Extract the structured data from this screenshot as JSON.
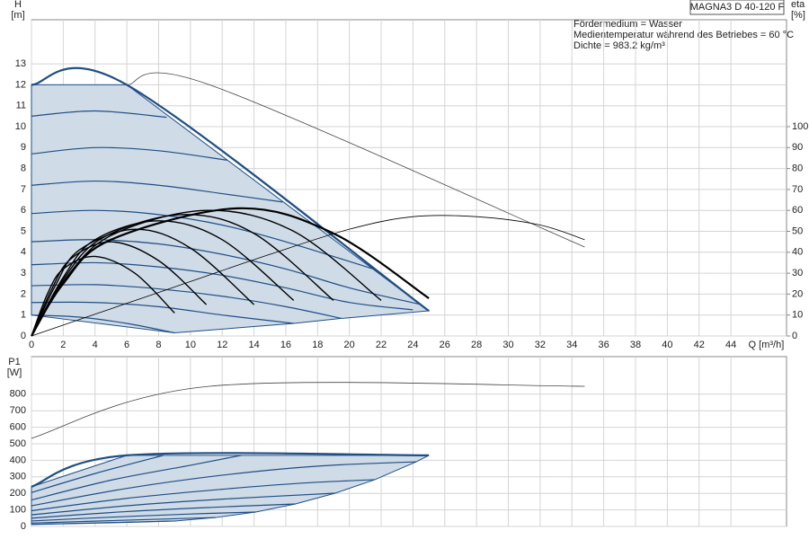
{
  "chart_data": [
    {
      "type": "line",
      "model": "MAGNA3 D 40-120 F",
      "notes": [
        "Fördermedium = Wasser",
        "Medientemperatur während des Betriebes = 60 °C",
        "Dichte = 983.2 kg/m³"
      ],
      "ylabel": [
        "H",
        "[m]"
      ],
      "y2label": [
        "eta",
        "[%]"
      ],
      "xlabel": "Q [m³/h]",
      "xlim": [
        0,
        47.5
      ],
      "xticks": [
        0,
        2,
        4,
        6,
        8,
        10,
        12,
        14,
        16,
        18,
        20,
        22,
        24,
        26,
        28,
        30,
        32,
        34,
        36,
        38,
        40,
        42,
        44
      ],
      "ylim": [
        0,
        15
      ],
      "yticks": [
        0,
        1,
        2,
        3,
        4,
        5,
        6,
        7,
        8,
        9,
        10,
        11,
        12,
        13
      ],
      "y2lim": [
        0,
        150
      ],
      "y2ticks": [
        0,
        10,
        20,
        30,
        40,
        50,
        60,
        70,
        80,
        90,
        100
      ],
      "grid": true,
      "region_color": "#cfdce8",
      "series": [
        {
          "color": "#1f4e85",
          "linewidth": 2.2,
          "x": [
            0,
            6,
            25
          ],
          "values": [
            12,
            12,
            1.2
          ]
        },
        {
          "color": "#1f4e85",
          "linewidth": 1.2,
          "x": [
            0,
            4,
            8.5
          ],
          "values": [
            10.5,
            10.75,
            10.45
          ]
        },
        {
          "color": "#1f4e85",
          "linewidth": 1.2,
          "x": [
            0,
            4,
            8,
            12.3
          ],
          "values": [
            8.7,
            9.0,
            8.85,
            8.4
          ]
        },
        {
          "color": "#1f4e85",
          "linewidth": 1.2,
          "x": [
            0,
            4,
            8,
            12,
            15.8
          ],
          "values": [
            7.2,
            7.4,
            7.2,
            6.8,
            6.4
          ]
        },
        {
          "color": "#1f4e85",
          "linewidth": 1.2,
          "x": [
            0,
            4,
            8,
            12,
            16,
            21.5
          ],
          "values": [
            5.85,
            6.0,
            5.8,
            5.3,
            4.5,
            3.2
          ]
        },
        {
          "color": "#1f4e85",
          "linewidth": 1.2,
          "x": [
            0,
            4,
            8,
            12,
            16,
            20,
            24.5
          ],
          "values": [
            4.5,
            4.6,
            4.4,
            3.9,
            3.2,
            2.3,
            1.5
          ]
        },
        {
          "color": "#1f4e85",
          "linewidth": 1.2,
          "x": [
            0,
            4,
            8,
            12,
            16,
            20,
            24
          ],
          "values": [
            3.4,
            3.5,
            3.3,
            2.9,
            2.3,
            1.6,
            1.25
          ]
        },
        {
          "color": "#1f4e85",
          "linewidth": 1.2,
          "x": [
            0,
            4,
            8,
            12,
            16,
            19.5
          ],
          "values": [
            2.4,
            2.45,
            2.25,
            1.9,
            1.4,
            0.84
          ]
        },
        {
          "color": "#1f4e85",
          "linewidth": 1.2,
          "x": [
            0,
            4,
            8,
            12,
            16.5
          ],
          "values": [
            1.6,
            1.6,
            1.4,
            1.0,
            0.6
          ]
        },
        {
          "color": "#1f4e85",
          "linewidth": 1.2,
          "x": [
            0,
            3,
            6,
            9
          ],
          "values": [
            1.0,
            0.9,
            0.6,
            0.15
          ]
        },
        {
          "color": "#444444",
          "linewidth": 0.8,
          "x": [
            6,
            11.2,
            34.8
          ],
          "values": [
            12,
            12,
            4.25
          ]
        },
        {
          "color": "#000000",
          "linewidth": 0.8,
          "axis": "y2",
          "x": [
            0,
            5,
            10,
            15,
            20,
            24,
            28,
            32,
            34.8
          ],
          "values": [
            0,
            13,
            26,
            39,
            51,
            57,
            57,
            53,
            46
          ]
        },
        {
          "color": "#000000",
          "linewidth": 1.4,
          "axis": "y2",
          "x": [
            0,
            1,
            2,
            4,
            6.5,
            9
          ],
          "values": [
            0,
            20,
            32,
            38,
            30,
            11
          ]
        },
        {
          "color": "#000000",
          "linewidth": 1.4,
          "axis": "y2",
          "x": [
            0,
            1.25,
            2.5,
            5,
            8,
            11
          ],
          "values": [
            0,
            22,
            37,
            45,
            36,
            15
          ]
        },
        {
          "color": "#000000",
          "linewidth": 1.4,
          "axis": "y2",
          "x": [
            0,
            1.5,
            3,
            6.5,
            10,
            14
          ],
          "values": [
            0,
            24,
            41,
            51,
            42,
            15
          ]
        },
        {
          "color": "#000000",
          "linewidth": 1.4,
          "axis": "y2",
          "x": [
            0,
            2,
            4,
            8,
            12,
            16.5
          ],
          "values": [
            0,
            28,
            46,
            55,
            46,
            17
          ]
        },
        {
          "color": "#000000",
          "linewidth": 1.4,
          "axis": "y2",
          "x": [
            0,
            2,
            4.5,
            9.5,
            14,
            19
          ],
          "values": [
            0,
            27,
            47,
            58,
            49,
            17
          ]
        },
        {
          "color": "#000000",
          "linewidth": 1.4,
          "axis": "y2",
          "x": [
            0,
            2,
            5,
            11,
            16.5,
            22
          ],
          "values": [
            0,
            26,
            48,
            60,
            50,
            17
          ]
        },
        {
          "color": "#000000",
          "linewidth": 2.2,
          "axis": "y2",
          "x": [
            0,
            2,
            5,
            13,
            19,
            25
          ],
          "values": [
            0,
            25,
            46,
            61,
            49,
            18
          ]
        }
      ]
    },
    {
      "type": "line",
      "ylabel": [
        "P1",
        "[W]"
      ],
      "xlim": [
        0,
        47.5
      ],
      "ylim": [
        0,
        1000
      ],
      "yticks": [
        0,
        100,
        200,
        300,
        400,
        500,
        600,
        700,
        800
      ],
      "grid": true,
      "region_color": "#cfdce8",
      "series": [
        {
          "color": "#1f4e85",
          "linewidth": 2.2,
          "x": [
            0,
            6,
            25
          ],
          "values": [
            240,
            430,
            430
          ]
        },
        {
          "color": "#1f4e85",
          "linewidth": 1.2,
          "x": [
            0,
            4,
            8.3
          ],
          "values": [
            205,
            320,
            430
          ]
        },
        {
          "color": "#1f4e85",
          "linewidth": 1.2,
          "x": [
            0,
            5,
            10,
            13.2
          ],
          "values": [
            160,
            280,
            370,
            430
          ]
        },
        {
          "color": "#1f4e85",
          "linewidth": 1.2,
          "x": [
            0,
            6,
            12,
            18,
            24.2
          ],
          "values": [
            125,
            230,
            310,
            365,
            391
          ]
        },
        {
          "color": "#1f4e85",
          "linewidth": 1.2,
          "x": [
            0,
            6,
            12,
            17,
            21.6
          ],
          "values": [
            95,
            170,
            225,
            262,
            283
          ]
        },
        {
          "color": "#1f4e85",
          "linewidth": 1.2,
          "x": [
            0,
            6,
            12,
            19.1
          ],
          "values": [
            70,
            125,
            165,
            201
          ]
        },
        {
          "color": "#1f4e85",
          "linewidth": 1.2,
          "x": [
            0,
            6,
            12,
            16.6
          ],
          "values": [
            50,
            90,
            118,
            136
          ]
        },
        {
          "color": "#1f4e85",
          "linewidth": 1.2,
          "x": [
            0,
            5,
            10,
            14.1
          ],
          "values": [
            33,
            56,
            75,
            87
          ]
        },
        {
          "color": "#1f4e85",
          "linewidth": 1.2,
          "x": [
            0,
            5,
            11.6
          ],
          "values": [
            20,
            35,
            54
          ]
        },
        {
          "color": "#1f4e85",
          "linewidth": 1.2,
          "x": [
            0,
            4,
            9.1
          ],
          "values": [
            12,
            20,
            33
          ]
        },
        {
          "color": "#444444",
          "linewidth": 0.8,
          "x": [
            0,
            11.2,
            34.8
          ],
          "values": [
            533,
            848,
            848
          ]
        }
      ]
    }
  ]
}
